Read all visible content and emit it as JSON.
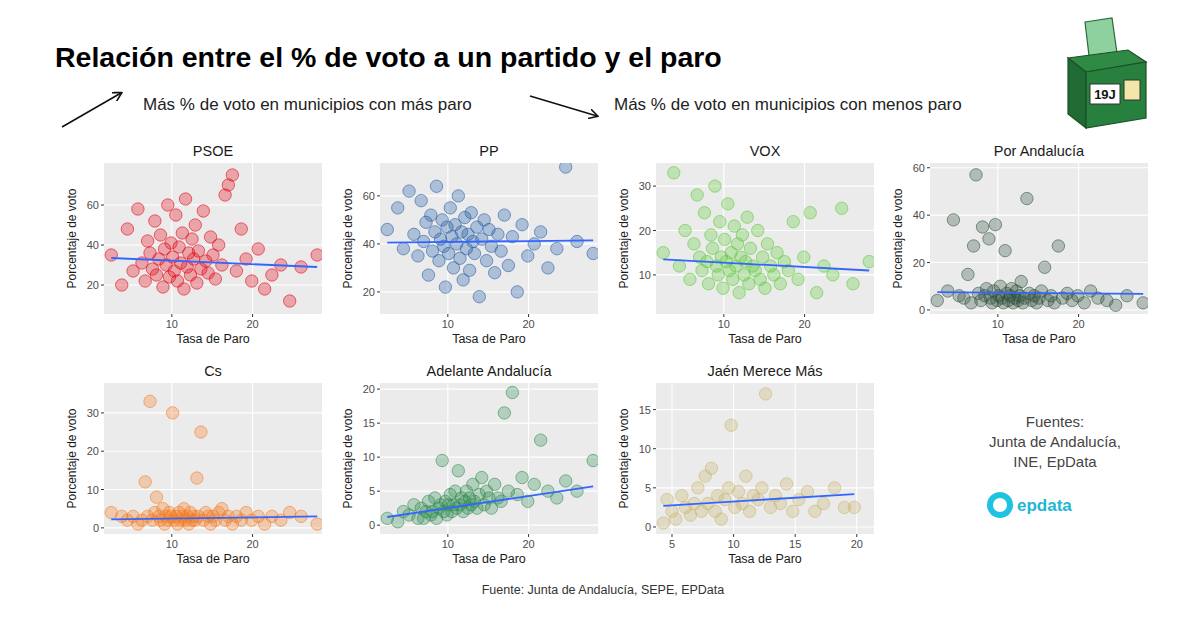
{
  "title": "Relación entre el % de voto a un partido y el paro",
  "annotations": [
    "Más % de voto en municipios con más paro",
    "Más % de voto en municipios con menos paro"
  ],
  "icon_label": "19J",
  "sources": [
    "Fuentes:",
    "Junta de Andalucía,",
    "INE, EpData"
  ],
  "logo": "epdata",
  "footer": "Fuente: Junta de Andalucía, SEPE, EPData",
  "chart_data": [
    {
      "type": "scatter",
      "title": "PSOE",
      "x_label": "Tasa de Paro",
      "y_label": "Porcentaje de voto",
      "xlim": [
        1.6,
        28.6
      ],
      "ylim": [
        5.5,
        81
      ],
      "xticks": [
        10,
        20
      ],
      "yticks": [
        20,
        40,
        60
      ],
      "grid": true,
      "series": [
        {
          "type": "scatter",
          "color": "#e3000f",
          "x": [
            2.5,
            3.8,
            4.5,
            5.2,
            5.8,
            6.3,
            6.7,
            7.0,
            7.3,
            7.6,
            7.9,
            8.1,
            8.4,
            8.6,
            8.9,
            9.1,
            9.3,
            9.5,
            9.7,
            9.9,
            10.1,
            10.3,
            10.5,
            10.7,
            10.9,
            11.1,
            11.3,
            11.5,
            11.7,
            11.9,
            12.1,
            12.3,
            12.5,
            12.7,
            12.9,
            13.1,
            13.3,
            13.6,
            13.9,
            14.2,
            14.5,
            14.8,
            15.1,
            15.4,
            15.8,
            16.2,
            16.6,
            17.0,
            17.5,
            18.0,
            18.6,
            19.2,
            19.9,
            20.7,
            21.5,
            22.4,
            23.5,
            24.6,
            26.0,
            28.0
          ],
          "values": [
            35,
            20,
            48,
            27,
            58,
            31,
            22,
            42,
            36,
            28,
            52,
            25,
            33,
            45,
            19,
            38,
            30,
            60,
            24,
            41,
            34,
            27,
            55,
            22,
            39,
            31,
            46,
            18,
            63,
            29,
            36,
            25,
            43,
            33,
            50,
            21,
            37,
            28,
            57,
            32,
            26,
            44,
            35,
            23,
            40,
            30,
            65,
            70,
            75,
            27,
            48,
            33,
            22,
            38,
            18,
            25,
            30,
            12,
            29,
            35
          ]
        },
        {
          "type": "line",
          "color": "#3366ff",
          "x": [
            2.5,
            28.0
          ],
          "values": [
            33.5,
            29
          ]
        }
      ]
    },
    {
      "type": "scatter",
      "title": "PP",
      "x_label": "Tasa de Paro",
      "y_label": "Porcentaje de voto",
      "xlim": [
        1.6,
        28.6
      ],
      "ylim": [
        10.8,
        73.7
      ],
      "xticks": [
        10,
        20
      ],
      "yticks": [
        20,
        40,
        60
      ],
      "grid": true,
      "series": [
        {
          "type": "scatter",
          "color": "#1f5aa6",
          "x": [
            2.5,
            3.8,
            4.5,
            5.2,
            5.8,
            6.3,
            6.7,
            7.0,
            7.3,
            7.6,
            7.9,
            8.1,
            8.4,
            8.6,
            8.9,
            9.1,
            9.3,
            9.5,
            9.7,
            9.9,
            10.1,
            10.3,
            10.5,
            10.7,
            10.9,
            11.1,
            11.3,
            11.5,
            11.7,
            11.9,
            12.1,
            12.3,
            12.5,
            12.7,
            12.9,
            13.1,
            13.3,
            13.6,
            13.9,
            14.2,
            14.5,
            14.8,
            15.1,
            15.4,
            15.8,
            16.2,
            16.6,
            17.0,
            17.5,
            18.0,
            18.6,
            19.2,
            19.9,
            20.7,
            21.5,
            22.4,
            23.5,
            24.6,
            26.0,
            28.0
          ],
          "values": [
            46,
            55,
            38,
            62,
            44,
            35,
            58,
            41,
            49,
            27,
            52,
            37,
            45,
            64,
            33,
            42,
            50,
            39,
            22,
            47,
            36,
            55,
            43,
            30,
            48,
            40,
            60,
            34,
            45,
            25,
            51,
            38,
            44,
            29,
            53,
            41,
            36,
            47,
            18,
            42,
            50,
            33,
            46,
            39,
            28,
            44,
            37,
            52,
            31,
            43,
            20,
            48,
            35,
            40,
            45,
            30,
            38,
            72,
            41,
            36
          ]
        },
        {
          "type": "line",
          "color": "#3366ff",
          "x": [
            2.5,
            28.0
          ],
          "values": [
            40.5,
            41.5
          ]
        }
      ]
    },
    {
      "type": "scatter",
      "title": "VOX",
      "x_label": "Tasa de Paro",
      "y_label": "Porcentaje de voto",
      "xlim": [
        1.6,
        28.6
      ],
      "ylim": [
        1.2,
        35.2
      ],
      "xticks": [
        10,
        20
      ],
      "yticks": [
        10,
        20,
        30
      ],
      "grid": true,
      "series": [
        {
          "type": "scatter",
          "color": "#5ac935",
          "x": [
            2.5,
            3.8,
            4.5,
            5.2,
            5.8,
            6.3,
            6.7,
            7.0,
            7.3,
            7.6,
            7.9,
            8.1,
            8.4,
            8.6,
            8.9,
            9.1,
            9.3,
            9.5,
            9.7,
            9.9,
            10.1,
            10.3,
            10.5,
            10.7,
            10.9,
            11.1,
            11.3,
            11.5,
            11.7,
            11.9,
            12.1,
            12.3,
            12.5,
            12.7,
            12.9,
            13.1,
            13.3,
            13.6,
            13.9,
            14.2,
            14.5,
            14.8,
            15.1,
            15.4,
            15.8,
            16.2,
            16.6,
            17.0,
            17.5,
            18.0,
            18.6,
            19.2,
            19.9,
            20.7,
            21.5,
            22.4,
            23.5,
            24.6,
            26.0,
            28.0
          ],
          "values": [
            15,
            33,
            12,
            20,
            9,
            17,
            28,
            14,
            11,
            24,
            13,
            8,
            19,
            16,
            30,
            12,
            10,
            22,
            14,
            7,
            18,
            13,
            26,
            11,
            15,
            9,
            21,
            12,
            17,
            6,
            14,
            19,
            10,
            13,
            23,
            8,
            16,
            12,
            11,
            20,
            9,
            14,
            7,
            17,
            12,
            10,
            15,
            8,
            13,
            11,
            22,
            9,
            14,
            24,
            6,
            12,
            10,
            25,
            8,
            13
          ]
        },
        {
          "type": "line",
          "color": "#3366ff",
          "x": [
            2.5,
            28.0
          ],
          "values": [
            13.5,
            11
          ]
        }
      ]
    },
    {
      "type": "scatter",
      "title": "Por Andalucía",
      "x_label": "Tasa de Paro",
      "y_label": "Porcentaje de voto",
      "xlim": [
        1.6,
        28.6
      ],
      "ylim": [
        -1.7,
        62
      ],
      "xticks": [
        10,
        20
      ],
      "yticks": [
        0,
        20,
        40,
        60
      ],
      "grid": true,
      "series": [
        {
          "type": "scatter",
          "color": "#2f4f3a",
          "x": [
            2.5,
            3.8,
            4.5,
            5.2,
            5.8,
            6.3,
            6.7,
            7.0,
            7.3,
            7.6,
            7.9,
            8.1,
            8.4,
            8.6,
            8.9,
            9.1,
            9.3,
            9.5,
            9.7,
            9.9,
            10.1,
            10.3,
            10.5,
            10.7,
            10.9,
            11.1,
            11.3,
            11.5,
            11.7,
            11.9,
            12.1,
            12.3,
            12.5,
            12.7,
            12.9,
            13.1,
            13.3,
            13.6,
            13.9,
            14.2,
            14.5,
            14.8,
            15.1,
            15.4,
            15.8,
            16.2,
            16.6,
            17.0,
            17.5,
            18.0,
            18.6,
            19.2,
            19.9,
            20.7,
            21.5,
            22.4,
            23.5,
            24.6,
            26.0,
            28.0
          ],
          "values": [
            4,
            8,
            38,
            6,
            5,
            15,
            3,
            27,
            57,
            7,
            4,
            35,
            6,
            9,
            30,
            5,
            3,
            8,
            36,
            4,
            6,
            10,
            5,
            3,
            25,
            7,
            4,
            6,
            9,
            3,
            5,
            8,
            4,
            6,
            12,
            3,
            5,
            47,
            7,
            4,
            6,
            3,
            5,
            8,
            18,
            4,
            6,
            3,
            27,
            5,
            7,
            4,
            6,
            3,
            8,
            5,
            4,
            2,
            6,
            3
          ]
        },
        {
          "type": "line",
          "color": "#3366ff",
          "x": [
            2.5,
            28.0
          ],
          "values": [
            7.5,
            6.8
          ]
        }
      ]
    },
    {
      "type": "scatter",
      "title": "Cs",
      "x_label": "Tasa de Paro",
      "y_label": "Porcentaje de voto",
      "xlim": [
        1.6,
        28.6
      ],
      "ylim": [
        -1.6,
        37.8
      ],
      "xticks": [
        10,
        20
      ],
      "yticks": [
        0,
        10,
        20,
        30
      ],
      "grid": true,
      "series": [
        {
          "type": "scatter",
          "color": "#f47a1f",
          "x": [
            2.5,
            3.8,
            4.5,
            5.2,
            5.8,
            6.3,
            6.7,
            7.0,
            7.3,
            7.6,
            7.9,
            8.1,
            8.4,
            8.6,
            8.9,
            9.1,
            9.3,
            9.5,
            9.7,
            9.9,
            10.1,
            10.3,
            10.5,
            10.7,
            10.9,
            11.1,
            11.3,
            11.5,
            11.7,
            11.9,
            12.1,
            12.3,
            12.5,
            12.7,
            12.9,
            13.1,
            13.3,
            13.6,
            13.9,
            14.2,
            14.5,
            14.8,
            15.1,
            15.4,
            15.8,
            16.2,
            16.6,
            17.0,
            17.5,
            18.0,
            18.6,
            19.2,
            19.9,
            20.7,
            21.5,
            22.4,
            23.5,
            24.6,
            26.0,
            28.0
          ],
          "values": [
            4,
            3,
            2,
            3,
            1,
            2,
            12,
            3,
            33,
            2,
            4,
            8,
            3,
            2,
            5,
            1,
            3,
            2,
            4,
            3,
            30,
            2,
            3,
            1,
            4,
            2,
            3,
            5,
            2,
            3,
            1,
            4,
            2,
            3,
            2,
            13,
            3,
            25,
            2,
            4,
            3,
            1,
            3,
            2,
            4,
            5,
            2,
            3,
            1,
            3,
            2,
            4,
            2,
            3,
            1,
            3,
            2,
            4,
            3,
            1
          ]
        },
        {
          "type": "line",
          "color": "#3366ff",
          "x": [
            2.5,
            28.0
          ],
          "values": [
            2.2,
            3
          ]
        }
      ]
    },
    {
      "type": "scatter",
      "title": "Adelante Andalucía",
      "x_label": "Tasa de Paro",
      "y_label": "Porcentaje de voto",
      "xlim": [
        1.6,
        28.6
      ],
      "ylim": [
        -1.3,
        20.9
      ],
      "xticks": [
        10,
        20
      ],
      "yticks": [
        0,
        5,
        10,
        15,
        20
      ],
      "grid": true,
      "series": [
        {
          "type": "scatter",
          "color": "#2d8a4e",
          "x": [
            2.5,
            3.8,
            4.5,
            5.2,
            5.8,
            6.3,
            6.7,
            7.0,
            7.3,
            7.6,
            7.9,
            8.1,
            8.4,
            8.6,
            8.9,
            9.1,
            9.3,
            9.5,
            9.7,
            9.9,
            10.1,
            10.3,
            10.5,
            10.7,
            10.9,
            11.1,
            11.3,
            11.5,
            11.7,
            11.9,
            12.1,
            12.3,
            12.5,
            12.7,
            12.9,
            13.1,
            13.3,
            13.6,
            13.9,
            14.2,
            14.5,
            14.8,
            15.1,
            15.4,
            15.8,
            16.2,
            16.6,
            17.0,
            17.5,
            18.0,
            18.6,
            19.2,
            19.9,
            20.7,
            21.5,
            22.4,
            23.5,
            24.6,
            26.0,
            28.0
          ],
          "values": [
            1,
            0.5,
            2,
            1.5,
            3,
            1,
            2.5,
            1,
            2,
            3.5,
            1.5,
            2,
            4,
            1,
            2.5,
            3,
            9.5,
            2,
            3.5,
            1.5,
            3,
            4.5,
            2,
            3,
            5,
            2.5,
            8,
            3,
            4,
            2,
            3.5,
            5,
            2.5,
            4,
            3,
            6,
            3.5,
            2.5,
            4.5,
            7,
            3,
            5,
            4,
            2.5,
            6,
            4,
            3.5,
            16.5,
            5,
            19.5,
            4.5,
            7,
            3.5,
            6,
            12.5,
            5,
            4,
            6.5,
            5,
            9.5
          ]
        },
        {
          "type": "line",
          "color": "#3366ff",
          "x": [
            2.5,
            28.0
          ],
          "values": [
            1.2,
            5.7
          ]
        }
      ]
    },
    {
      "type": "scatter",
      "title": "Jaén Merece Más",
      "x_label": "Tasa de Paro",
      "y_label": "Porcentaje de voto",
      "xlim": [
        3.7,
        21.4
      ],
      "ylim": [
        -0.9,
        18.4
      ],
      "xticks": [
        5,
        10,
        15,
        20
      ],
      "yticks": [
        0,
        5,
        10,
        15
      ],
      "grid": true,
      "series": [
        {
          "type": "scatter",
          "color": "#c8b46a",
          "x": [
            4.3,
            4.6,
            5.0,
            5.3,
            5.8,
            6.1,
            6.5,
            6.8,
            7.1,
            7.4,
            7.7,
            7.9,
            8.2,
            8.5,
            8.7,
            9.0,
            9.3,
            9.6,
            9.8,
            10.1,
            10.4,
            10.7,
            11.0,
            11.3,
            11.6,
            12.0,
            12.3,
            12.6,
            13.0,
            13.4,
            13.8,
            14.3,
            14.8,
            15.3,
            16.0,
            16.6,
            17.3,
            18.2,
            19.0,
            19.8
          ],
          "values": [
            0.5,
            3.5,
            2,
            1,
            4,
            2.5,
            1.5,
            3,
            5,
            2,
            6.5,
            3,
            7.5,
            2,
            4,
            1,
            3.5,
            5,
            13,
            2.5,
            4.5,
            3,
            6.5,
            2,
            4,
            3.5,
            5,
            17,
            2.5,
            4,
            3,
            5.5,
            2,
            3.5,
            4.5,
            2,
            3,
            5,
            2.5,
            2.5
          ]
        },
        {
          "type": "line",
          "color": "#3366ff",
          "x": [
            4.3,
            19.8
          ],
          "values": [
            2.7,
            4.2
          ]
        }
      ]
    }
  ]
}
